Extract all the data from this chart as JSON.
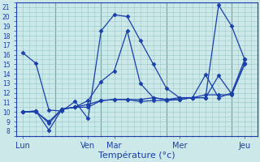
{
  "xlabel": "Température (°c)",
  "bg_color": "#cce8e8",
  "grid_color": "#99cccc",
  "line_color": "#1a3faa",
  "marker": "D",
  "marker_size": 2.5,
  "linewidth": 0.9,
  "ylim": [
    7.5,
    21.5
  ],
  "yticks": [
    8,
    9,
    10,
    11,
    12,
    13,
    14,
    15,
    16,
    17,
    18,
    19,
    20,
    21
  ],
  "day_labels": [
    "Lun",
    "Ven",
    "Mar",
    "Mer",
    "Jeu"
  ],
  "day_tick_pos": [
    0,
    10,
    14,
    24,
    34
  ],
  "vline_pos": [
    5,
    12,
    22,
    32
  ],
  "xlim": [
    -1,
    36
  ],
  "series": [
    {
      "x": [
        0,
        2,
        4,
        6,
        8,
        10,
        12,
        14,
        16,
        18,
        20,
        22,
        24,
        26,
        28,
        30,
        32,
        34
      ],
      "y": [
        16.2,
        15.1,
        10.2,
        10.1,
        11.1,
        9.3,
        18.5,
        20.2,
        20.0,
        17.5,
        15.0,
        12.5,
        11.5,
        11.5,
        11.5,
        21.2,
        19.0,
        15.5
      ]
    },
    {
      "x": [
        0,
        2,
        4,
        6,
        8,
        10,
        12,
        14,
        16,
        18,
        20,
        22,
        24,
        26,
        28,
        30,
        32,
        34
      ],
      "y": [
        10.0,
        10.1,
        8.1,
        10.3,
        10.5,
        10.5,
        11.2,
        11.3,
        11.3,
        11.1,
        11.2,
        11.2,
        11.3,
        11.5,
        11.5,
        13.8,
        11.9,
        15.1
      ]
    },
    {
      "x": [
        0,
        2,
        4,
        6,
        8,
        10,
        12,
        14,
        16,
        18,
        20,
        22,
        24,
        26,
        28,
        30,
        32,
        34
      ],
      "y": [
        10.0,
        10.1,
        8.8,
        10.3,
        10.5,
        11.2,
        13.2,
        14.3,
        18.5,
        13.0,
        11.5,
        11.3,
        11.5,
        11.5,
        13.9,
        11.5,
        12.0,
        15.5
      ]
    },
    {
      "x": [
        0,
        2,
        4,
        6,
        8,
        10,
        12,
        14,
        16,
        18,
        20,
        22,
        24,
        26,
        28,
        30,
        32,
        34
      ],
      "y": [
        10.0,
        10.0,
        9.0,
        10.3,
        10.5,
        10.8,
        11.2,
        11.3,
        11.3,
        11.3,
        11.5,
        11.3,
        11.3,
        11.5,
        11.8,
        11.8,
        11.8,
        15.0
      ]
    }
  ]
}
